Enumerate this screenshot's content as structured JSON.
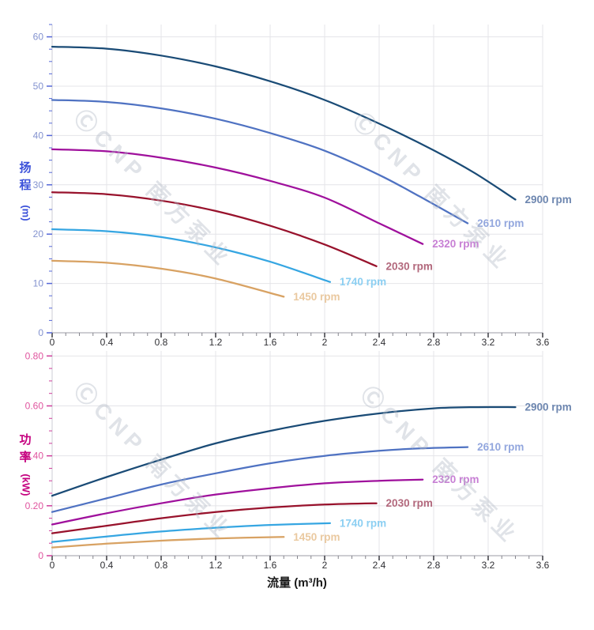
{
  "x_axis_name": "流量 (m³/h)",
  "watermark": {
    "text": "ⒸCNP 南方泵业"
  },
  "head_axis": {
    "char1": "扬",
    "char2": "程",
    "unit": "(m)"
  },
  "power_axis": {
    "char1": "功",
    "char2": "率",
    "unit": "(kW)"
  },
  "chart_data": [
    {
      "type": "line",
      "name": "head-curves",
      "ylabel": "扬程 (m)",
      "xlabel": "流量 (m³/h)",
      "xlim": [
        0,
        3.6
      ],
      "ylim": [
        0,
        62.5
      ],
      "x_major": 0.4,
      "x_minor": 0.1,
      "y_major": 10,
      "y_minor": 2.5,
      "x_tick_labels": [
        "0",
        "0.4",
        "0.8",
        "1.2",
        "1.6",
        "2",
        "2.4",
        "2.8",
        "3.2",
        "3.6"
      ],
      "y_tick_labels": [
        "0",
        "10",
        "20",
        "30",
        "40",
        "50",
        "60"
      ],
      "grid": true,
      "legend_position": "curve-end",
      "axis_colors": {
        "y_tick_label": "#8392cf",
        "y_tick_mark": "#5668d8",
        "x_tick_label": "#2f2f33",
        "x_tick_mark": "#47474d"
      },
      "series": [
        {
          "name": "2900 rpm",
          "color": "#1a4b76",
          "label_color": "#6e87b0",
          "points": [
            [
              0,
              58
            ],
            [
              0.4,
              57.6
            ],
            [
              0.8,
              56.2
            ],
            [
              1.2,
              54.0
            ],
            [
              1.6,
              51.0
            ],
            [
              2.0,
              47.2
            ],
            [
              2.4,
              42.4
            ],
            [
              2.8,
              37.0
            ],
            [
              3.1,
              32.4
            ],
            [
              3.4,
              27.0
            ]
          ]
        },
        {
          "name": "2610 rpm",
          "color": "#4f72c2",
          "label_color": "#93a7de",
          "points": [
            [
              0,
              47.2
            ],
            [
              0.4,
              46.8
            ],
            [
              0.8,
              45.5
            ],
            [
              1.2,
              43.4
            ],
            [
              1.6,
              40.5
            ],
            [
              2.0,
              36.9
            ],
            [
              2.4,
              32.0
            ],
            [
              2.7,
              27.6
            ],
            [
              3.05,
              22.2
            ]
          ]
        },
        {
          "name": "2320 rpm",
          "color": "#9f109c",
          "label_color": "#c77fd4",
          "points": [
            [
              0,
              37.2
            ],
            [
              0.4,
              36.8
            ],
            [
              0.8,
              35.5
            ],
            [
              1.2,
              33.5
            ],
            [
              1.6,
              30.8
            ],
            [
              2.0,
              27.4
            ],
            [
              2.4,
              22.2
            ],
            [
              2.72,
              18.0
            ]
          ]
        },
        {
          "name": "2030 rpm",
          "color": "#98122c",
          "label_color": "#b2687c",
          "points": [
            [
              0,
              28.5
            ],
            [
              0.4,
              28.1
            ],
            [
              0.8,
              26.8
            ],
            [
              1.2,
              24.7
            ],
            [
              1.6,
              21.7
            ],
            [
              2.0,
              17.9
            ],
            [
              2.38,
              13.5
            ]
          ]
        },
        {
          "name": "1740 rpm",
          "color": "#36a6e2",
          "label_color": "#8ccff2",
          "points": [
            [
              0,
              21.0
            ],
            [
              0.4,
              20.6
            ],
            [
              0.8,
              19.4
            ],
            [
              1.2,
              17.3
            ],
            [
              1.6,
              14.4
            ],
            [
              2.04,
              10.3
            ]
          ]
        },
        {
          "name": "1450 rpm",
          "color": "#d8a263",
          "label_color": "#eac9a0",
          "points": [
            [
              0,
              14.6
            ],
            [
              0.4,
              14.2
            ],
            [
              0.8,
              13.0
            ],
            [
              1.2,
              11.0
            ],
            [
              1.7,
              7.3
            ]
          ]
        }
      ]
    },
    {
      "type": "line",
      "name": "power-curves",
      "ylabel": "功率 (kW)",
      "xlabel": "流量 (m³/h)",
      "xlim": [
        0,
        3.6
      ],
      "ylim": [
        0,
        0.82
      ],
      "x_major": 0.4,
      "x_minor": 0.1,
      "y_major": 0.2,
      "y_minor": 0.05,
      "x_tick_labels": [
        "0",
        "0.4",
        "0.8",
        "1.2",
        "1.6",
        "2",
        "2.4",
        "2.8",
        "3.2",
        "3.6"
      ],
      "y_tick_labels": [
        "0",
        "0.20",
        "0.40",
        "0.60",
        "0.80"
      ],
      "grid": true,
      "legend_position": "curve-end",
      "axis_colors": {
        "y_tick_label": "#e0559f",
        "y_tick_mark": "#cf3d9b",
        "x_tick_label": "#2f2f33",
        "x_tick_mark": "#47474d"
      },
      "series": [
        {
          "name": "2900 rpm",
          "color": "#1a4b76",
          "label_color": "#6e87b0",
          "points": [
            [
              0,
              0.24
            ],
            [
              0.4,
              0.315
            ],
            [
              0.8,
              0.385
            ],
            [
              1.2,
              0.45
            ],
            [
              1.6,
              0.5
            ],
            [
              2.0,
              0.54
            ],
            [
              2.4,
              0.57
            ],
            [
              2.8,
              0.59
            ],
            [
              3.1,
              0.595
            ],
            [
              3.4,
              0.595
            ]
          ]
        },
        {
          "name": "2610 rpm",
          "color": "#4f72c2",
          "label_color": "#93a7de",
          "points": [
            [
              0,
              0.175
            ],
            [
              0.4,
              0.23
            ],
            [
              0.8,
              0.285
            ],
            [
              1.2,
              0.33
            ],
            [
              1.6,
              0.37
            ],
            [
              2.0,
              0.4
            ],
            [
              2.4,
              0.42
            ],
            [
              2.7,
              0.43
            ],
            [
              3.05,
              0.435
            ]
          ]
        },
        {
          "name": "2320 rpm",
          "color": "#9f109c",
          "label_color": "#c77fd4",
          "points": [
            [
              0,
              0.125
            ],
            [
              0.4,
              0.17
            ],
            [
              0.8,
              0.21
            ],
            [
              1.2,
              0.245
            ],
            [
              1.6,
              0.27
            ],
            [
              2.0,
              0.29
            ],
            [
              2.4,
              0.3
            ],
            [
              2.72,
              0.305
            ]
          ]
        },
        {
          "name": "2030 rpm",
          "color": "#98122c",
          "label_color": "#b2687c",
          "points": [
            [
              0,
              0.09
            ],
            [
              0.4,
              0.12
            ],
            [
              0.8,
              0.15
            ],
            [
              1.2,
              0.175
            ],
            [
              1.6,
              0.193
            ],
            [
              2.0,
              0.205
            ],
            [
              2.38,
              0.21
            ]
          ]
        },
        {
          "name": "1740 rpm",
          "color": "#36a6e2",
          "label_color": "#8ccff2",
          "points": [
            [
              0,
              0.055
            ],
            [
              0.4,
              0.077
            ],
            [
              0.8,
              0.097
            ],
            [
              1.2,
              0.112
            ],
            [
              1.6,
              0.123
            ],
            [
              2.04,
              0.13
            ]
          ]
        },
        {
          "name": "1450 rpm",
          "color": "#d8a263",
          "label_color": "#eac9a0",
          "points": [
            [
              0,
              0.033
            ],
            [
              0.4,
              0.048
            ],
            [
              0.8,
              0.06
            ],
            [
              1.2,
              0.069
            ],
            [
              1.7,
              0.075
            ]
          ]
        }
      ]
    }
  ]
}
